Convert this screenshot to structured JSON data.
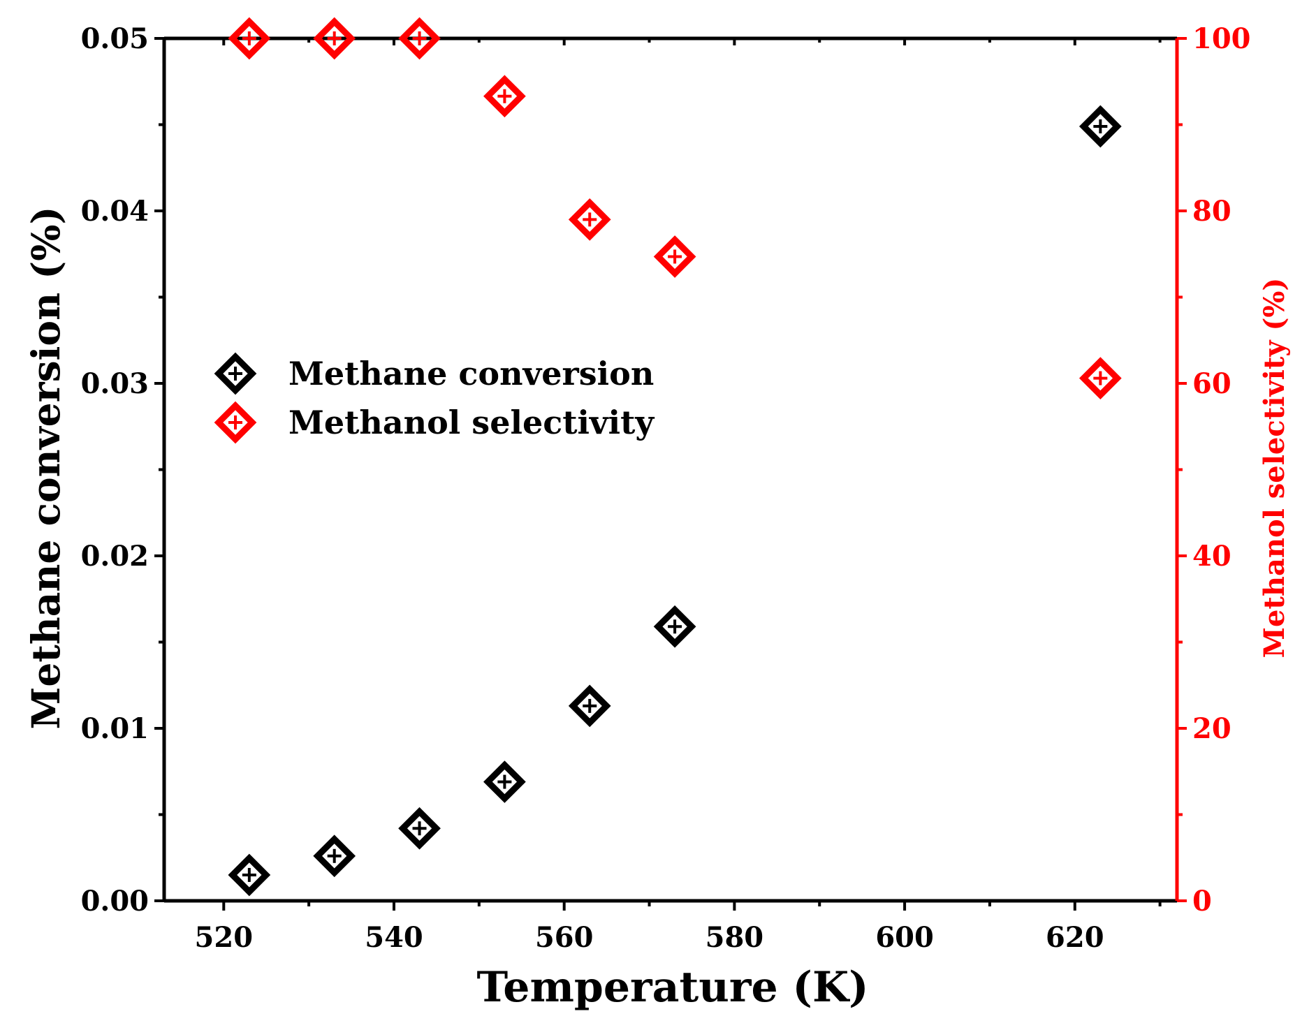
{
  "chart_data": {
    "type": "scatter",
    "xlabel": "Temperature (K)",
    "ylabel_left": "Methane conversion (%)",
    "ylabel_right": "Methanol selectivity (%)",
    "xlim": [
      513,
      632
    ],
    "ylim_left": [
      0,
      0.05
    ],
    "ylim_right": [
      0,
      100
    ],
    "x_ticks": [
      520,
      540,
      560,
      580,
      600,
      620
    ],
    "x_tick_labels": [
      "520",
      "540",
      "560",
      "580",
      "600",
      "620"
    ],
    "y_left_ticks": [
      0,
      0.01,
      0.02,
      0.03,
      0.04,
      0.05
    ],
    "y_left_tick_labels": [
      "0.00",
      "0.01",
      "0.02",
      "0.03",
      "0.04",
      "0.05"
    ],
    "y_right_ticks": [
      0,
      20,
      40,
      60,
      80,
      100
    ],
    "y_right_tick_labels": [
      "0",
      "20",
      "40",
      "60",
      "80",
      "100"
    ],
    "legend_position": "center-left",
    "grid": false,
    "series": [
      {
        "name": "Methane conversion",
        "axis": "left",
        "color": "#000000",
        "marker": "diamond-plus",
        "x": [
          523,
          533,
          543,
          553,
          563,
          573,
          623
        ],
        "y": [
          0.0015,
          0.0026,
          0.0042,
          0.0069,
          0.0113,
          0.0159,
          0.0449
        ]
      },
      {
        "name": "Methanol selectivity",
        "axis": "right",
        "color": "#ff0000",
        "marker": "diamond-plus",
        "x": [
          523,
          533,
          543,
          553,
          563,
          573,
          623
        ],
        "y": [
          100,
          100,
          100,
          93.3,
          79,
          74.7,
          60.6
        ]
      }
    ]
  }
}
